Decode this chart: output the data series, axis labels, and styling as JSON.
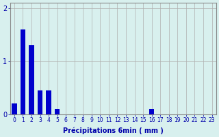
{
  "values": [
    0.2,
    1.6,
    1.3,
    0.45,
    0.45,
    0.1,
    0,
    0,
    0,
    0,
    0,
    0,
    0,
    0,
    0,
    0,
    0.1,
    0,
    0,
    0,
    0,
    0,
    0,
    0
  ],
  "xlabel": "Précipitations 6min ( mm )",
  "ylim": [
    0,
    2.1
  ],
  "xlim": [
    -0.5,
    23.5
  ],
  "yticks": [
    0,
    1,
    2
  ],
  "xticks": [
    0,
    1,
    2,
    3,
    4,
    5,
    6,
    7,
    8,
    9,
    10,
    11,
    12,
    13,
    14,
    15,
    16,
    17,
    18,
    19,
    20,
    21,
    22,
    23
  ],
  "bar_color": "#0000cc",
  "background_color": "#d8f0ee",
  "grid_color": "#b0b0b0",
  "figsize": [
    3.2,
    2.0
  ],
  "dpi": 100,
  "bar_width": 0.6,
  "tick_fontsize": 5.5,
  "xlabel_fontsize": 7
}
